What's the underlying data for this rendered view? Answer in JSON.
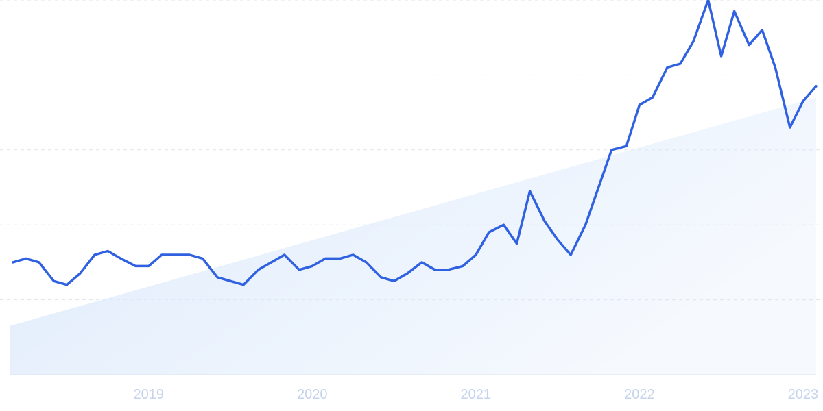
{
  "chart_data": {
    "type": "line",
    "title": "",
    "xlabel": "",
    "ylabel": "",
    "xlim": [
      2018.15,
      2023.08
    ],
    "ylim": [
      0,
      100
    ],
    "grid": true,
    "legend": "none",
    "x_ticks": [
      {
        "value": 2019,
        "label": "2019"
      },
      {
        "value": 2020,
        "label": "2020"
      },
      {
        "value": 2021,
        "label": "2021"
      },
      {
        "value": 2022,
        "label": "2022"
      },
      {
        "value": 2023,
        "label": "2023"
      }
    ],
    "y_gridlines": [
      0,
      20,
      40,
      60,
      80,
      100
    ],
    "colors": {
      "line": "#3061e0",
      "trend_fill": "#dbe9fb",
      "tick_label": "#c5d3ec"
    },
    "series": [
      {
        "x": [
          2018.17,
          2018.25,
          2018.33,
          2018.42,
          2018.5,
          2018.58,
          2018.67,
          2018.75,
          2018.83,
          2018.92,
          2019.0,
          2019.08,
          2019.17,
          2019.25,
          2019.33,
          2019.42,
          2019.5,
          2019.58,
          2019.67,
          2019.75,
          2019.83,
          2019.92,
          2020.0,
          2020.08,
          2020.17,
          2020.25,
          2020.33,
          2020.42,
          2020.5,
          2020.58,
          2020.67,
          2020.75,
          2020.83,
          2020.92,
          2021.0,
          2021.08,
          2021.17,
          2021.25,
          2021.33,
          2021.42,
          2021.5,
          2021.58,
          2021.67,
          2021.75,
          2021.83,
          2021.92,
          2022.0,
          2022.08,
          2022.17,
          2022.25,
          2022.33,
          2022.42,
          2022.5,
          2022.58,
          2022.67,
          2022.75,
          2022.83,
          2022.92,
          2023.0,
          2023.08
        ],
        "values": [
          30,
          31,
          30,
          25,
          24,
          27,
          32,
          33,
          31,
          29,
          29,
          32,
          32,
          32,
          31,
          26,
          25,
          24,
          28,
          30,
          32,
          28,
          29,
          31,
          31,
          32,
          30,
          26,
          25,
          27,
          30,
          28,
          28,
          29,
          32,
          38,
          40,
          35,
          49,
          41,
          36,
          32,
          40,
          50,
          60,
          61,
          72,
          74,
          82,
          83,
          89,
          100,
          85,
          97,
          88,
          92,
          82,
          66,
          73,
          77
        ]
      }
    ],
    "trend": {
      "start": 13,
      "end": 74
    }
  }
}
